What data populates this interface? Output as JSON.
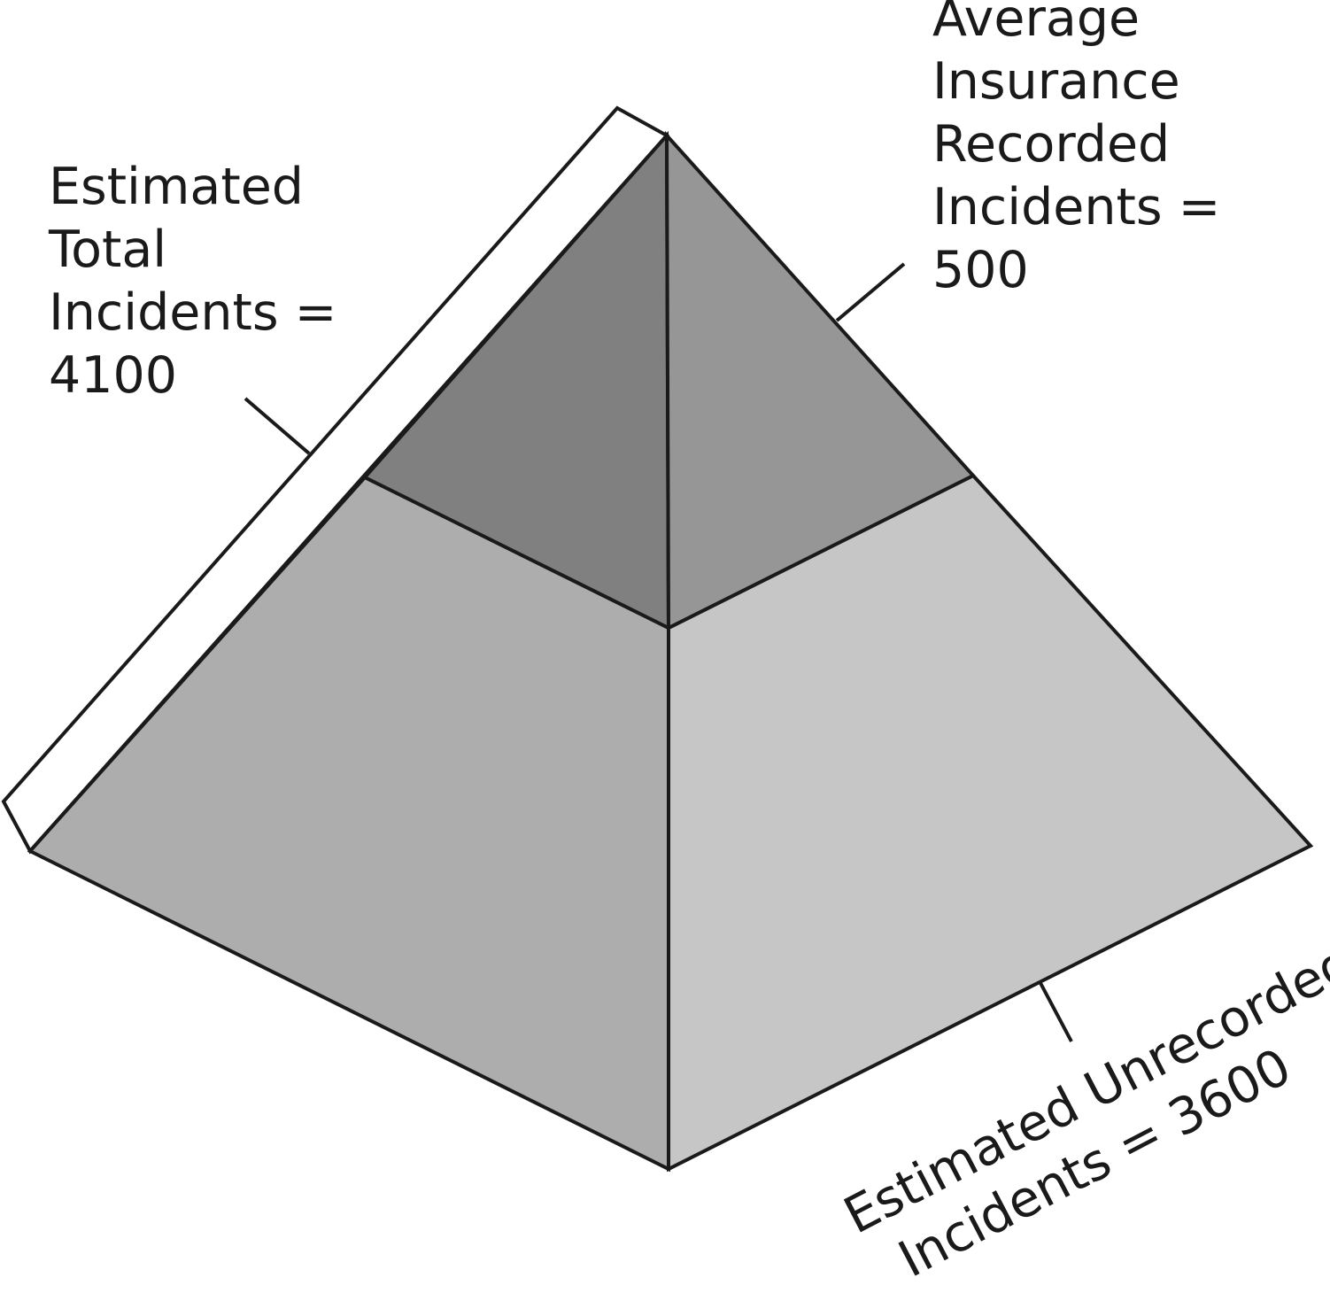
{
  "labels": {
    "total": {
      "lines": [
        "Estimated",
        "Total",
        "Incidents =",
        "4100"
      ]
    },
    "recorded": {
      "lines": [
        "Average",
        "Insurance",
        "Recorded",
        "Incidents =",
        "500"
      ]
    },
    "unrecorded": {
      "lines": [
        "Estimated Unrecorded",
        "Incidents = 3600"
      ]
    }
  },
  "colors": {
    "background": "#ffffff",
    "outline": "#1a1a1a",
    "top_left_face": "#808080",
    "top_right_face": "#969696",
    "bottom_left_face": "#adadad",
    "bottom_right_face": "#c6c6c6",
    "side_band": "#ffffff"
  }
}
